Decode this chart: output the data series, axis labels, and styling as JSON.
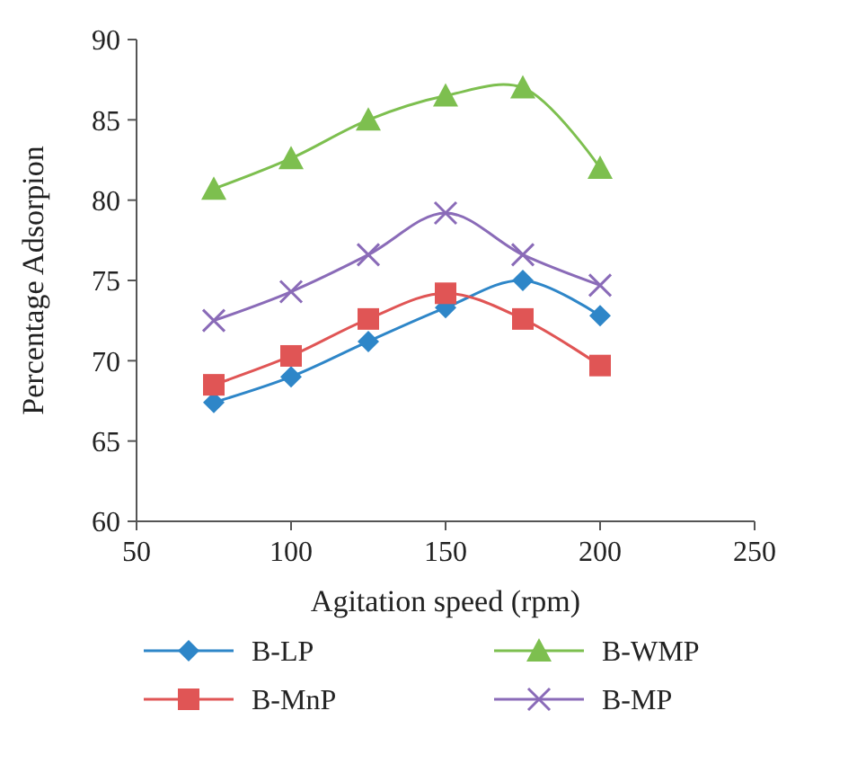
{
  "chart_data": {
    "type": "line",
    "xlabel": "Agitation speed (rpm)",
    "ylabel": "Percentage Adsorpion",
    "x": [
      75,
      100,
      125,
      150,
      175,
      200
    ],
    "xlim": [
      50,
      250
    ],
    "xticks": [
      50,
      100,
      150,
      200,
      250
    ],
    "ylim": [
      60,
      90
    ],
    "yticks": [
      60,
      65,
      70,
      75,
      80,
      85,
      90
    ],
    "grid": false,
    "legend": "bottom",
    "line_style": "solid",
    "series": [
      {
        "name": "B-LP",
        "color": "#2e86c8",
        "marker": "diamond",
        "values": [
          67.4,
          69.0,
          71.2,
          73.3,
          75.0,
          72.8
        ]
      },
      {
        "name": "B-WMP",
        "color": "#7dbf4f",
        "marker": "triangle",
        "values": [
          80.7,
          82.6,
          85.0,
          86.5,
          87.0,
          82.0
        ]
      },
      {
        "name": "B-MnP",
        "color": "#e05555",
        "marker": "square",
        "values": [
          68.5,
          70.3,
          72.6,
          74.2,
          72.6,
          69.7
        ]
      },
      {
        "name": "B-MP",
        "color": "#8a6bb8",
        "marker": "cross",
        "values": [
          72.5,
          74.3,
          76.6,
          79.2,
          76.6,
          74.7
        ]
      }
    ]
  }
}
